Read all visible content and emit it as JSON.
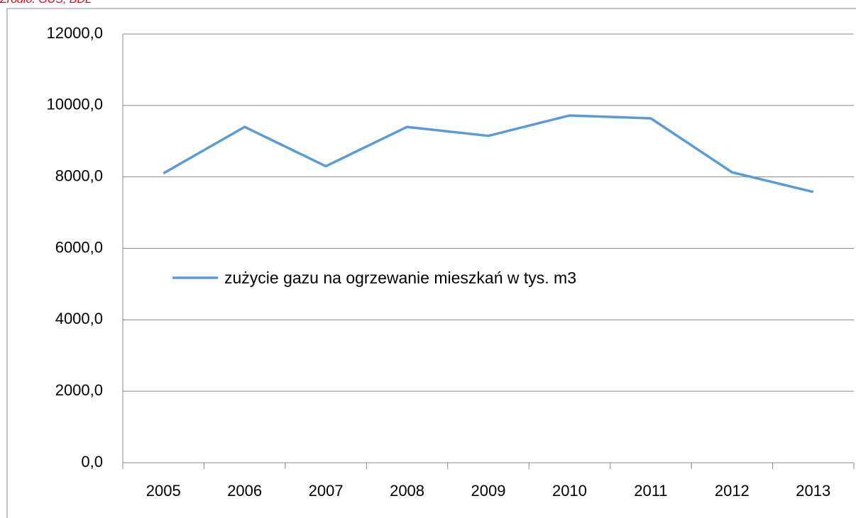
{
  "chart_data": {
    "type": "line",
    "source": "Źródło: GUS, BDL",
    "categories": [
      "2005",
      "2006",
      "2007",
      "2008",
      "2009",
      "2010",
      "2011",
      "2012",
      "2013"
    ],
    "series": [
      {
        "name": "zużycie gazu na ogrzewanie mieszkań w tys. m3",
        "color": "#5b9bd5",
        "values": [
          8100,
          9400,
          8300,
          9400,
          9150,
          9720,
          9640,
          8130,
          7580
        ]
      }
    ],
    "ylim": [
      0,
      12000
    ],
    "yticks": [
      {
        "value": 0,
        "label": "0,0"
      },
      {
        "value": 2000,
        "label": "2000,0"
      },
      {
        "value": 4000,
        "label": "4000,0"
      },
      {
        "value": 6000,
        "label": "6000,0"
      },
      {
        "value": 8000,
        "label": "8000,0"
      },
      {
        "value": 10000,
        "label": "10000,0"
      },
      {
        "value": 12000,
        "label": "12000,0"
      }
    ],
    "grid": true
  }
}
